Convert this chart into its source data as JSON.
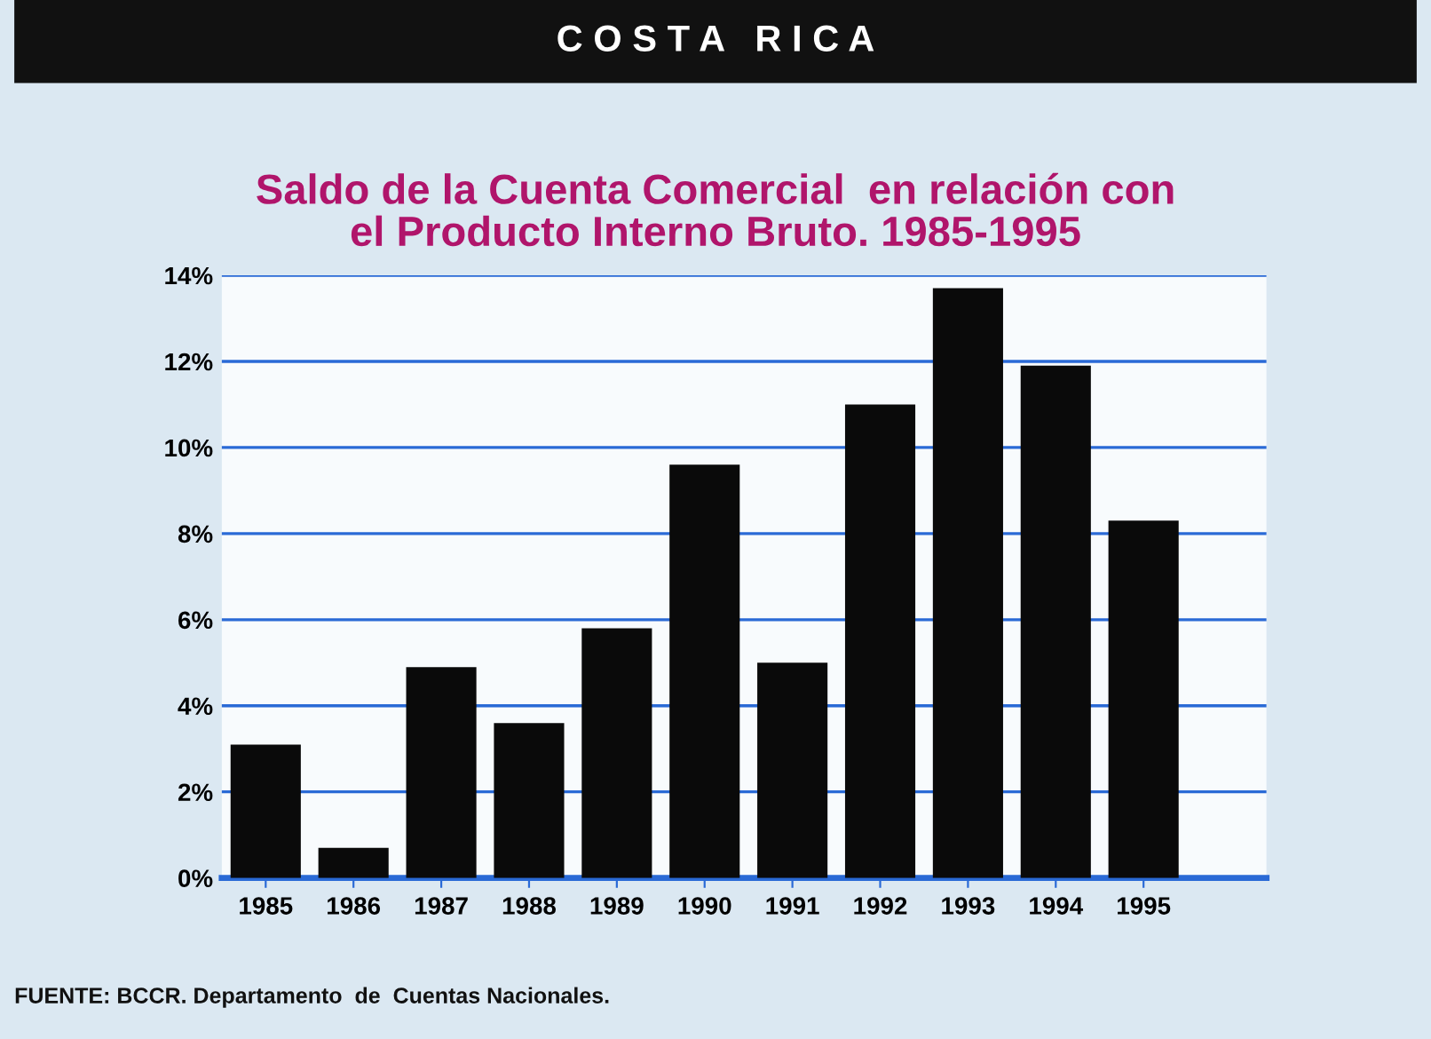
{
  "chart_data": {
    "type": "bar",
    "title": "Saldo de la Cuenta Comercial  en relación con\nel Producto Interno Bruto. 1985-1995",
    "annotations": [
      "C O S T A   R I C A",
      "FUENTE: BCCR. Departamento  de  Cuentas Nacionales."
    ],
    "categories": [
      "1985",
      "1986",
      "1987",
      "1988",
      "1989",
      "1990",
      "1991",
      "1992",
      "1993",
      "1994",
      "1995"
    ],
    "values": [
      3.1,
      0.7,
      4.9,
      3.6,
      5.8,
      9.6,
      5.0,
      11.0,
      13.7,
      11.9,
      8.3
    ],
    "color": "#0a0a0a",
    "ylim": [
      0,
      14
    ],
    "yticks": [
      {
        "value": 0,
        "label": "0%"
      },
      {
        "value": 2,
        "label": "2%"
      },
      {
        "value": 4,
        "label": "4%"
      },
      {
        "value": 6,
        "label": "6%"
      },
      {
        "value": 8,
        "label": "8%"
      },
      {
        "value": 10,
        "label": "10%"
      },
      {
        "value": 12,
        "label": "12%"
      },
      {
        "value": 14,
        "label": "14%"
      }
    ],
    "grid": "y"
  }
}
